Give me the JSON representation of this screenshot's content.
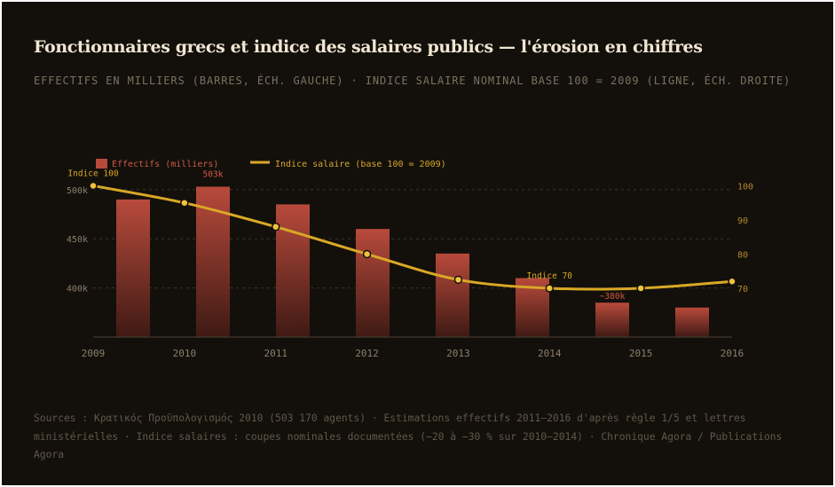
{
  "chart_data": {
    "type": "bar",
    "title": "Fonctionnaires grecs et indice des salaires publics — l'érosion en chiffres",
    "subtitle": "EFFECTIFS EN MILLIERS (BARRES, ÉCH. GAUCHE) · INDICE SALAIRE NOMINAL BASE 100 = 2009 (LIGNE, ÉCH. DROITE)",
    "categories": [
      "2009",
      "2010",
      "2011",
      "2012",
      "2013",
      "2014",
      "2015",
      "2016"
    ],
    "series": [
      {
        "name": "Effectifs (milliers)",
        "type": "bar",
        "axis": "left",
        "x": [
          "2009",
          "2010",
          "2011",
          "2012",
          "2013",
          "2014",
          "2015",
          "2016"
        ],
        "values": [
          490,
          503,
          485,
          460,
          435,
          410,
          385,
          380
        ]
      },
      {
        "name": "Indice salaire (base 100 = 2009)",
        "type": "line",
        "axis": "right",
        "x": [
          2009,
          2010,
          2011,
          2012,
          2013,
          2014,
          2015,
          2016
        ],
        "values": [
          100,
          95,
          88,
          80,
          72.5,
          70,
          70,
          72
        ]
      }
    ],
    "y_left": {
      "ticks": [
        400,
        450,
        500
      ],
      "tick_labels": [
        "400k",
        "450k",
        "500k"
      ],
      "range": [
        350,
        512
      ]
    },
    "y_right": {
      "ticks": [
        70,
        80,
        90,
        100
      ],
      "tick_labels": [
        "70",
        "80",
        "90",
        "100"
      ],
      "range": [
        55.7,
        101.5
      ]
    },
    "x_range": [
      2009,
      2016
    ],
    "grid": true,
    "legend_placement": "top-left",
    "annotations": [
      {
        "text": "Indice 100",
        "series": "Indice salaire (base 100 = 2009)",
        "x": 2009
      },
      {
        "text": "503k",
        "series": "Effectifs (milliers)",
        "x": "2010"
      },
      {
        "text": "Indice 70",
        "series": "Indice salaire (base 100 = 2009)",
        "x": 2014
      },
      {
        "text": "~380k",
        "series": "Effectifs (milliers)",
        "x": "2015"
      }
    ],
    "colors": {
      "background": "#13100b",
      "bar_top": "#b84a3c",
      "bar_bottom": "#3f1a14",
      "line": "#d9a826",
      "point_fill": "#f0c23c",
      "left_axis_text": "#8c7f6c",
      "right_axis_text": "#b2882c",
      "bar_annotation": "#d05a45",
      "line_annotation": "#d9a826",
      "legend_bar_text": "#c95a46",
      "legend_line_text": "#d6a62c"
    },
    "source": "Sources : Κρατικός Προϋπολογισμός 2010 (503 170 agents) · Estimations effectifs 2011–2016 d'après règle 1/5 et lettres ministérielles · Indice salaires : coupes nominales documentées (−20 à −30 % sur 2010–2014) · Chronique Agora / Publications Agora"
  }
}
